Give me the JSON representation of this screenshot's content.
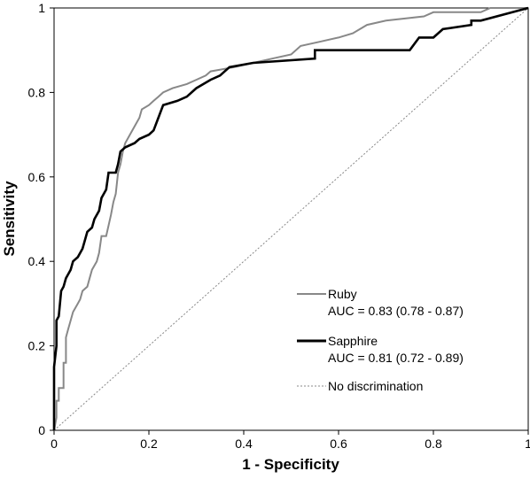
{
  "chart_data": {
    "type": "line",
    "title": "",
    "xlabel": "1 - Specificity",
    "ylabel": "Sensitivity",
    "xlim": [
      0,
      1
    ],
    "ylim": [
      0,
      1
    ],
    "x_ticks": [
      "0",
      "0.2",
      "0.4",
      "0.6",
      "0.8",
      "1"
    ],
    "y_ticks": [
      "0",
      "0.2",
      "0.4",
      "0.6",
      "0.8",
      "1"
    ],
    "grid": false,
    "legend_position": "bottom-right",
    "series": [
      {
        "name": "Ruby",
        "auc_label": "AUC = 0.83 (0.78 - 0.87)",
        "color": "#888888",
        "points": [
          [
            0,
            0
          ],
          [
            0.005,
            0.03
          ],
          [
            0.005,
            0.07
          ],
          [
            0.01,
            0.07
          ],
          [
            0.01,
            0.1
          ],
          [
            0.02,
            0.1
          ],
          [
            0.02,
            0.16
          ],
          [
            0.025,
            0.16
          ],
          [
            0.025,
            0.22
          ],
          [
            0.03,
            0.24
          ],
          [
            0.035,
            0.26
          ],
          [
            0.04,
            0.28
          ],
          [
            0.05,
            0.3
          ],
          [
            0.055,
            0.31
          ],
          [
            0.06,
            0.33
          ],
          [
            0.07,
            0.34
          ],
          [
            0.075,
            0.36
          ],
          [
            0.08,
            0.38
          ],
          [
            0.09,
            0.4
          ],
          [
            0.095,
            0.42
          ],
          [
            0.1,
            0.46
          ],
          [
            0.11,
            0.46
          ],
          [
            0.12,
            0.51
          ],
          [
            0.125,
            0.54
          ],
          [
            0.13,
            0.56
          ],
          [
            0.135,
            0.61
          ],
          [
            0.14,
            0.63
          ],
          [
            0.145,
            0.66
          ],
          [
            0.15,
            0.68
          ],
          [
            0.16,
            0.7
          ],
          [
            0.17,
            0.72
          ],
          [
            0.18,
            0.74
          ],
          [
            0.185,
            0.76
          ],
          [
            0.2,
            0.77
          ],
          [
            0.21,
            0.78
          ],
          [
            0.22,
            0.79
          ],
          [
            0.23,
            0.8
          ],
          [
            0.25,
            0.81
          ],
          [
            0.28,
            0.82
          ],
          [
            0.3,
            0.83
          ],
          [
            0.32,
            0.84
          ],
          [
            0.33,
            0.85
          ],
          [
            0.38,
            0.86
          ],
          [
            0.42,
            0.87
          ],
          [
            0.46,
            0.88
          ],
          [
            0.5,
            0.89
          ],
          [
            0.52,
            0.91
          ],
          [
            0.56,
            0.92
          ],
          [
            0.6,
            0.93
          ],
          [
            0.63,
            0.94
          ],
          [
            0.66,
            0.96
          ],
          [
            0.7,
            0.97
          ],
          [
            0.78,
            0.98
          ],
          [
            0.8,
            0.99
          ],
          [
            0.9,
            0.99
          ],
          [
            0.92,
            1.0
          ],
          [
            1.0,
            1.0
          ]
        ]
      },
      {
        "name": "Sapphire",
        "auc_label": "AUC = 0.81 (0.72 - 0.89)",
        "color": "#000000",
        "points": [
          [
            0,
            0
          ],
          [
            0,
            0.15
          ],
          [
            0.005,
            0.2
          ],
          [
            0.005,
            0.26
          ],
          [
            0.01,
            0.27
          ],
          [
            0.015,
            0.33
          ],
          [
            0.02,
            0.34
          ],
          [
            0.025,
            0.36
          ],
          [
            0.035,
            0.38
          ],
          [
            0.04,
            0.4
          ],
          [
            0.05,
            0.41
          ],
          [
            0.06,
            0.43
          ],
          [
            0.065,
            0.45
          ],
          [
            0.07,
            0.47
          ],
          [
            0.08,
            0.48
          ],
          [
            0.085,
            0.5
          ],
          [
            0.095,
            0.52
          ],
          [
            0.1,
            0.55
          ],
          [
            0.11,
            0.57
          ],
          [
            0.115,
            0.61
          ],
          [
            0.13,
            0.61
          ],
          [
            0.135,
            0.63
          ],
          [
            0.14,
            0.66
          ],
          [
            0.15,
            0.67
          ],
          [
            0.17,
            0.68
          ],
          [
            0.18,
            0.69
          ],
          [
            0.2,
            0.7
          ],
          [
            0.21,
            0.71
          ],
          [
            0.22,
            0.74
          ],
          [
            0.23,
            0.77
          ],
          [
            0.26,
            0.78
          ],
          [
            0.28,
            0.79
          ],
          [
            0.3,
            0.81
          ],
          [
            0.33,
            0.83
          ],
          [
            0.35,
            0.84
          ],
          [
            0.37,
            0.86
          ],
          [
            0.42,
            0.87
          ],
          [
            0.55,
            0.88
          ],
          [
            0.55,
            0.9
          ],
          [
            0.75,
            0.9
          ],
          [
            0.77,
            0.93
          ],
          [
            0.8,
            0.93
          ],
          [
            0.82,
            0.95
          ],
          [
            0.88,
            0.96
          ],
          [
            0.88,
            0.97
          ],
          [
            0.9,
            0.97
          ],
          [
            1.0,
            1.0
          ]
        ]
      },
      {
        "name": "No discrimination",
        "color": "#888888",
        "dashed": true,
        "points": [
          [
            0,
            0
          ],
          [
            1,
            1
          ]
        ]
      }
    ]
  }
}
